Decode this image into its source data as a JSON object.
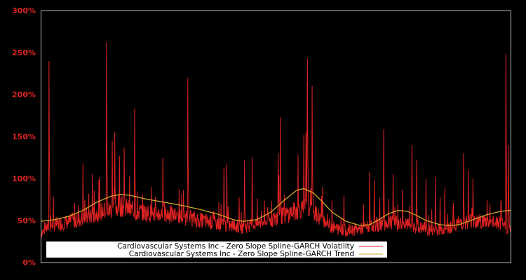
{
  "chart_data": {
    "type": "line",
    "title": "",
    "xlabel": "",
    "ylabel": "",
    "ylim": [
      0,
      300
    ],
    "yticks": [
      "0%",
      "50%",
      "100%",
      "150%",
      "200%",
      "250%",
      "300%"
    ],
    "grid": false,
    "background": "#000000",
    "legend_position": "lower-left inside plot",
    "series": [
      {
        "name": "Cardiovascular Systems Inc - Zero Slope Spline-GARCH Volatility",
        "color": "#dd2222",
        "baseline": [
          [
            0,
            33
          ],
          [
            0.02,
            42
          ],
          [
            0.05,
            45
          ],
          [
            0.08,
            48
          ],
          [
            0.1,
            52
          ],
          [
            0.13,
            58
          ],
          [
            0.15,
            60
          ],
          [
            0.17,
            64
          ],
          [
            0.2,
            58
          ],
          [
            0.23,
            56
          ],
          [
            0.26,
            55
          ],
          [
            0.3,
            52
          ],
          [
            0.34,
            48
          ],
          [
            0.37,
            45
          ],
          [
            0.4,
            42
          ],
          [
            0.43,
            40
          ],
          [
            0.47,
            45
          ],
          [
            0.5,
            50
          ],
          [
            0.53,
            56
          ],
          [
            0.56,
            62
          ],
          [
            0.58,
            58
          ],
          [
            0.6,
            48
          ],
          [
            0.62,
            40
          ],
          [
            0.65,
            36
          ],
          [
            0.68,
            38
          ],
          [
            0.71,
            42
          ],
          [
            0.74,
            45
          ],
          [
            0.77,
            44
          ],
          [
            0.8,
            40
          ],
          [
            0.83,
            36
          ],
          [
            0.86,
            38
          ],
          [
            0.89,
            45
          ],
          [
            0.92,
            48
          ],
          [
            0.95,
            46
          ],
          [
            0.98,
            44
          ],
          [
            0.99,
            40
          ],
          [
            1.0,
            38
          ]
        ],
        "spikes": [
          [
            0.018,
            240
          ],
          [
            0.08,
            68
          ],
          [
            0.09,
            118
          ],
          [
            0.11,
            105
          ],
          [
            0.14,
            262
          ],
          [
            0.152,
            145
          ],
          [
            0.158,
            155
          ],
          [
            0.168,
            127
          ],
          [
            0.178,
            137
          ],
          [
            0.2,
            183
          ],
          [
            0.235,
            90
          ],
          [
            0.26,
            125
          ],
          [
            0.3,
            82
          ],
          [
            0.313,
            220
          ],
          [
            0.39,
            113
          ],
          [
            0.396,
            117
          ],
          [
            0.434,
            122
          ],
          [
            0.45,
            126
          ],
          [
            0.51,
            110
          ],
          [
            0.507,
            104
          ],
          [
            0.51,
            128
          ],
          [
            0.505,
            130
          ],
          [
            0.51,
            125
          ],
          [
            0.51,
            120
          ],
          [
            0.51,
            122
          ],
          [
            0.51,
            124
          ],
          [
            0.51,
            126
          ],
          [
            0.51,
            127
          ],
          [
            0.51,
            128
          ],
          [
            0.51,
            129
          ],
          [
            0.51,
            130
          ],
          [
            0.51,
            131
          ],
          [
            0.51,
            132
          ],
          [
            0.51,
            133
          ],
          [
            0.51,
            134
          ],
          [
            0.51,
            135
          ],
          [
            0.51,
            136
          ],
          [
            0.51,
            137
          ],
          [
            0.51,
            138
          ],
          [
            0.51,
            139
          ],
          [
            0.51,
            140
          ],
          [
            0.51,
            141
          ],
          [
            0.51,
            142
          ],
          [
            0.51,
            143
          ],
          [
            0.51,
            144
          ],
          [
            0.51,
            145
          ],
          [
            0.51,
            146
          ],
          [
            0.51,
            147
          ],
          [
            0.51,
            148
          ],
          [
            0.51,
            149
          ],
          [
            0.51,
            150
          ],
          [
            0.51,
            151
          ],
          [
            0.51,
            152
          ],
          [
            0.51,
            153
          ],
          [
            0.51,
            154
          ],
          [
            0.51,
            155
          ],
          [
            0.51,
            156
          ],
          [
            0.51,
            157
          ],
          [
            0.51,
            158
          ],
          [
            0.51,
            159
          ],
          [
            0.51,
            160
          ],
          [
            0.51,
            161
          ],
          [
            0.51,
            162
          ],
          [
            0.51,
            163
          ],
          [
            0.51,
            164
          ],
          [
            0.51,
            165
          ],
          [
            0.51,
            166
          ],
          [
            0.51,
            167
          ],
          [
            0.51,
            168
          ],
          [
            0.51,
            169
          ],
          [
            0.51,
            170
          ],
          [
            0.51,
            171
          ],
          [
            0.51,
            172
          ],
          [
            0.51,
            173
          ],
          [
            0.51,
            173
          ],
          [
            0.548,
            128
          ],
          [
            0.56,
            152
          ],
          [
            0.565,
            155
          ],
          [
            0.567,
            175
          ],
          [
            0.568,
            243
          ],
          [
            0.578,
            210
          ],
          [
            0.6,
            90
          ],
          [
            0.62,
            75
          ],
          [
            0.645,
            80
          ],
          [
            0.7,
            108
          ],
          [
            0.71,
            98
          ],
          [
            0.73,
            159
          ],
          [
            0.75,
            105
          ],
          [
            0.77,
            87
          ],
          [
            0.79,
            98
          ],
          [
            0.79,
            140
          ],
          [
            0.8,
            122
          ],
          [
            0.82,
            100
          ],
          [
            0.84,
            102
          ],
          [
            0.85,
            78
          ],
          [
            0.86,
            88
          ],
          [
            0.9,
            130
          ],
          [
            0.91,
            110
          ],
          [
            0.92,
            100
          ],
          [
            0.95,
            75
          ],
          [
            0.99,
            248
          ],
          [
            0.995,
            140
          ]
        ]
      },
      {
        "name": "Cardiovascular Systems Inc - Zero Slope Spline-GARCH Trend",
        "color": "#d4a62a",
        "points": [
          [
            0,
            49
          ],
          [
            0.03,
            51
          ],
          [
            0.06,
            55
          ],
          [
            0.09,
            62
          ],
          [
            0.12,
            72
          ],
          [
            0.15,
            79
          ],
          [
            0.17,
            81
          ],
          [
            0.19,
            80
          ],
          [
            0.22,
            76
          ],
          [
            0.26,
            72
          ],
          [
            0.3,
            68
          ],
          [
            0.34,
            63
          ],
          [
            0.38,
            57
          ],
          [
            0.41,
            51
          ],
          [
            0.43,
            49
          ],
          [
            0.46,
            51
          ],
          [
            0.49,
            60
          ],
          [
            0.52,
            75
          ],
          [
            0.545,
            86
          ],
          [
            0.56,
            88
          ],
          [
            0.58,
            83
          ],
          [
            0.6,
            72
          ],
          [
            0.62,
            60
          ],
          [
            0.65,
            49
          ],
          [
            0.68,
            44
          ],
          [
            0.7,
            45
          ],
          [
            0.72,
            51
          ],
          [
            0.74,
            58
          ],
          [
            0.76,
            62
          ],
          [
            0.78,
            61
          ],
          [
            0.8,
            56
          ],
          [
            0.82,
            50
          ],
          [
            0.85,
            45
          ],
          [
            0.87,
            44
          ],
          [
            0.89,
            45
          ],
          [
            0.92,
            51
          ],
          [
            0.95,
            57
          ],
          [
            0.98,
            61
          ],
          [
            1.0,
            62
          ]
        ]
      }
    ]
  },
  "legend": {
    "items": [
      {
        "label": "Cardiovascular Systems Inc - Zero Slope Spline-GARCH Volatility",
        "color": "#dd2222"
      },
      {
        "label": "Cardiovascular Systems Inc - Zero Slope Spline-GARCH Trend",
        "color": "#d4a62a"
      }
    ]
  },
  "axis": {
    "y_labels": [
      "0%",
      "50%",
      "100%",
      "150%",
      "200%",
      "250%",
      "300%"
    ],
    "label_color": "#dd2222",
    "frame_color": "#bbbbbb"
  }
}
